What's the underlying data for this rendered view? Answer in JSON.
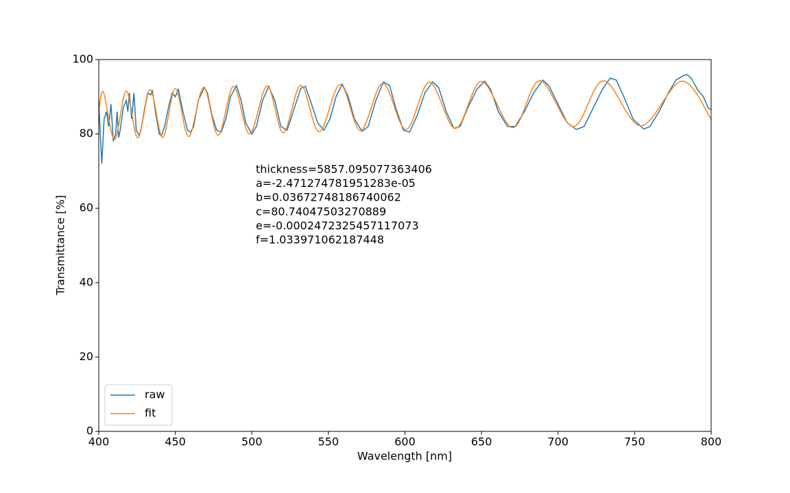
{
  "chart_data": {
    "type": "line",
    "xlabel": "Wavelength [nm]",
    "ylabel": "Transmittance [%]",
    "annotation_lines": [
      "thickness=5857.095077363406",
      "a=-2.471274781951283e-05",
      "b=0.03672748186740062",
      "c=80.74047503270889",
      "e=-0.0002472325457117073",
      "f=1.033971062187448"
    ],
    "xlim": [
      400,
      800
    ],
    "xticks": [
      400,
      450,
      500,
      550,
      600,
      650,
      700,
      750,
      800
    ],
    "ylim": [
      0,
      100
    ],
    "yticks": [
      0,
      20,
      40,
      60,
      80,
      100
    ],
    "grid": false,
    "legend": "lower left",
    "series": [
      {
        "name": "raw",
        "color": "#1f77b4",
        "smooth": false,
        "x": [
          400,
          401,
          402,
          403.5,
          405,
          406.5,
          408,
          409.5,
          411,
          412,
          413,
          414,
          416,
          418,
          419,
          420,
          421.5,
          423,
          424.5,
          426.5,
          428,
          430,
          432,
          434,
          435,
          437,
          439.5,
          441,
          443,
          446,
          448,
          450,
          452,
          455,
          458,
          460,
          462,
          465,
          469,
          471,
          474,
          477,
          480,
          483,
          486,
          490,
          493,
          496,
          500,
          503,
          507,
          511,
          515,
          519,
          523,
          527,
          532,
          535,
          539,
          543,
          547,
          551,
          555,
          559,
          563,
          567,
          572,
          576,
          581,
          586,
          590,
          594,
          599,
          603,
          608,
          613,
          618,
          622,
          627,
          632,
          636,
          641,
          647,
          652,
          656,
          661,
          667,
          672,
          678,
          684,
          690,
          694,
          700,
          706,
          712,
          717,
          723,
          729,
          734,
          738,
          743,
          749,
          756,
          760,
          766,
          772,
          777,
          781,
          784,
          787,
          791,
          795,
          798,
          800
        ],
        "values": [
          89,
          80,
          72,
          84,
          86,
          82,
          88,
          78,
          80,
          86,
          79,
          81,
          87,
          89,
          86,
          91,
          84,
          91,
          81,
          79.5,
          82,
          87,
          91,
          90.5,
          91.8,
          86,
          80,
          79.5,
          82,
          88,
          91,
          90,
          92,
          86,
          81,
          80.5,
          82,
          89,
          92.5,
          91,
          85,
          81,
          80.5,
          84,
          90,
          93,
          89,
          83,
          80,
          82,
          89,
          92.8,
          89,
          82,
          81,
          86,
          92.3,
          92.8,
          88,
          83,
          81,
          84,
          90,
          93.4,
          90,
          84,
          80.7,
          82,
          89,
          94,
          93,
          87,
          81,
          80.5,
          85,
          91,
          94,
          92.5,
          86,
          81.5,
          82,
          87,
          92,
          94.2,
          92,
          86,
          82,
          82,
          86,
          91,
          94.5,
          93,
          88,
          83,
          81.2,
          82,
          87,
          92,
          95,
          94.5,
          90,
          84,
          81.3,
          82,
          86,
          91,
          94.5,
          95.5,
          96,
          95,
          92,
          90,
          87,
          86.5
        ]
      },
      {
        "name": "fit",
        "color": "#ff7f0e",
        "smooth": true,
        "x": [
          400,
          403,
          410.3,
          418,
          425.5,
          433.6,
          441.7,
          450,
          458.7,
          468.5,
          478,
          488,
          498.5,
          510,
          520.5,
          532,
          544,
          557.7,
          571,
          585.5,
          600.7,
          616,
          633,
          650,
          670.5,
          688,
          710,
          729.7,
          754,
          780.7,
          800
        ],
        "values": [
          85.5,
          91.3,
          78.5,
          91.6,
          78.9,
          91.9,
          79.0,
          92.2,
          79.3,
          92.5,
          79.6,
          92.8,
          80.0,
          92.9,
          80.3,
          93.1,
          80.6,
          93.3,
          80.9,
          93.6,
          81.2,
          93.9,
          81.5,
          94.1,
          81.7,
          94.3,
          82.0,
          94.3,
          82.2,
          94.2,
          84.0
        ]
      }
    ]
  }
}
